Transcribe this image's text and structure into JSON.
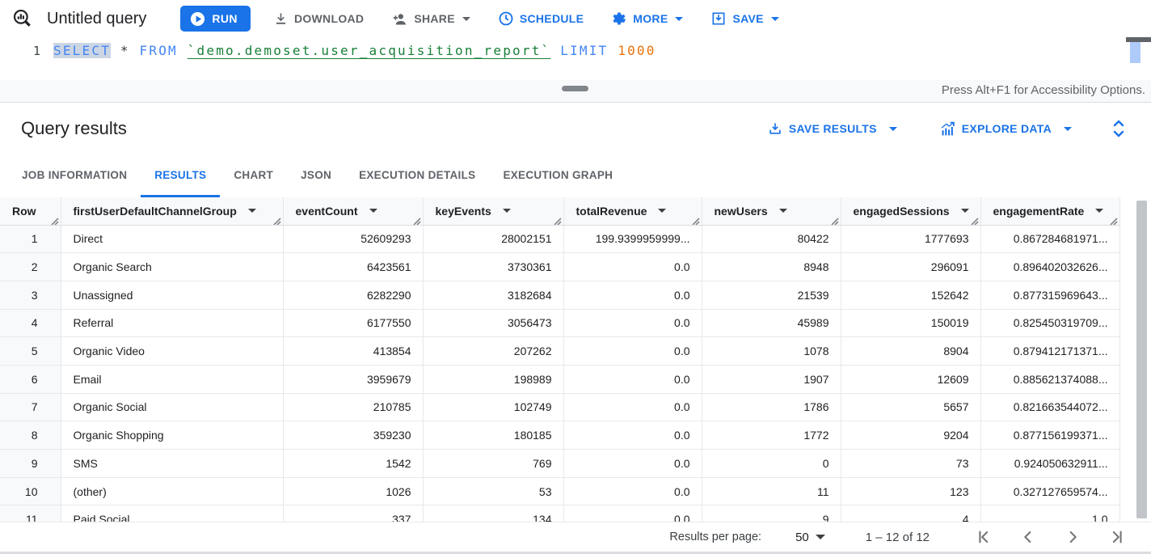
{
  "toolbar": {
    "title": "Untitled query",
    "run_label": "RUN",
    "download_label": "DOWNLOAD",
    "share_label": "SHARE",
    "schedule_label": "SCHEDULE",
    "more_label": "MORE",
    "save_label": "SAVE"
  },
  "editor": {
    "line_number": "1",
    "tokens": [
      {
        "text": "SELECT",
        "type": "keyword",
        "selected": true,
        "name": "sql-keyword-select"
      },
      {
        "text": " ",
        "type": "plain",
        "name": "sql-space"
      },
      {
        "text": "*",
        "type": "operator",
        "name": "sql-operator-star"
      },
      {
        "text": " ",
        "type": "plain",
        "name": "sql-space"
      },
      {
        "text": "FROM",
        "type": "keyword",
        "name": "sql-keyword-from"
      },
      {
        "text": " ",
        "type": "plain",
        "name": "sql-space"
      },
      {
        "text": "`demo.demoset.user_acquisition_report`",
        "type": "table",
        "name": "table-reference-link"
      },
      {
        "text": " ",
        "type": "plain",
        "name": "sql-space"
      },
      {
        "text": "LIMIT",
        "type": "keyword",
        "name": "sql-keyword-limit"
      },
      {
        "text": " ",
        "type": "plain",
        "name": "sql-space"
      },
      {
        "text": "1000",
        "type": "number",
        "name": "sql-number-literal"
      }
    ],
    "accessibility_hint": "Press Alt+F1 for Accessibility Options."
  },
  "results": {
    "title": "Query results",
    "save_results_label": "SAVE RESULTS",
    "explore_data_label": "EXPLORE DATA",
    "tabs": [
      {
        "label": "JOB INFORMATION",
        "active": false
      },
      {
        "label": "RESULTS",
        "active": true
      },
      {
        "label": "CHART",
        "active": false
      },
      {
        "label": "JSON",
        "active": false
      },
      {
        "label": "EXECUTION DETAILS",
        "active": false
      },
      {
        "label": "EXECUTION GRAPH",
        "active": false
      }
    ]
  },
  "table": {
    "row_header": "Row",
    "columns": [
      {
        "label": "firstUserDefaultChannelGroup",
        "sortable": true
      },
      {
        "label": "eventCount",
        "sortable": true
      },
      {
        "label": "keyEvents",
        "sortable": true
      },
      {
        "label": "totalRevenue",
        "sortable": true
      },
      {
        "label": "newUsers",
        "sortable": true
      },
      {
        "label": "engagedSessions",
        "sortable": true
      },
      {
        "label": "engagementRate",
        "sortable": true
      }
    ],
    "rows": [
      {
        "row": "1",
        "cells": [
          "Direct",
          "52609293",
          "28002151",
          "199.9399959999...",
          "80422",
          "1777693",
          "0.867284681971..."
        ]
      },
      {
        "row": "2",
        "cells": [
          "Organic Search",
          "6423561",
          "3730361",
          "0.0",
          "8948",
          "296091",
          "0.896402032626..."
        ]
      },
      {
        "row": "3",
        "cells": [
          "Unassigned",
          "6282290",
          "3182684",
          "0.0",
          "21539",
          "152642",
          "0.877315969643..."
        ]
      },
      {
        "row": "4",
        "cells": [
          "Referral",
          "6177550",
          "3056473",
          "0.0",
          "45989",
          "150019",
          "0.825450319709..."
        ]
      },
      {
        "row": "5",
        "cells": [
          "Organic Video",
          "413854",
          "207262",
          "0.0",
          "1078",
          "8904",
          "0.879412171371..."
        ]
      },
      {
        "row": "6",
        "cells": [
          "Email",
          "3959679",
          "198989",
          "0.0",
          "1907",
          "12609",
          "0.885621374088..."
        ]
      },
      {
        "row": "7",
        "cells": [
          "Organic Social",
          "210785",
          "102749",
          "0.0",
          "1786",
          "5657",
          "0.821663544072..."
        ]
      },
      {
        "row": "8",
        "cells": [
          "Organic Shopping",
          "359230",
          "180185",
          "0.0",
          "1772",
          "9204",
          "0.877156199371..."
        ]
      },
      {
        "row": "9",
        "cells": [
          "SMS",
          "1542",
          "769",
          "0.0",
          "0",
          "73",
          "0.924050632911..."
        ]
      },
      {
        "row": "10",
        "cells": [
          "(other)",
          "1026",
          "53",
          "0.0",
          "11",
          "123",
          "0.327127659574..."
        ]
      },
      {
        "row": "11",
        "clipped": true,
        "cells": [
          "Paid Social",
          "337",
          "134",
          "0.0",
          "9",
          "4",
          "1.0"
        ]
      }
    ]
  },
  "footer": {
    "results_per_page_label": "Results per page:",
    "page_size": "50",
    "range_label": "1 – 12 of 12"
  },
  "colors": {
    "accent_blue": "#1a73e8",
    "keyword_blue": "#4285f4",
    "table_link_green": "#188038",
    "number_orange": "#e8710a",
    "gray_text": "#5f6368"
  }
}
